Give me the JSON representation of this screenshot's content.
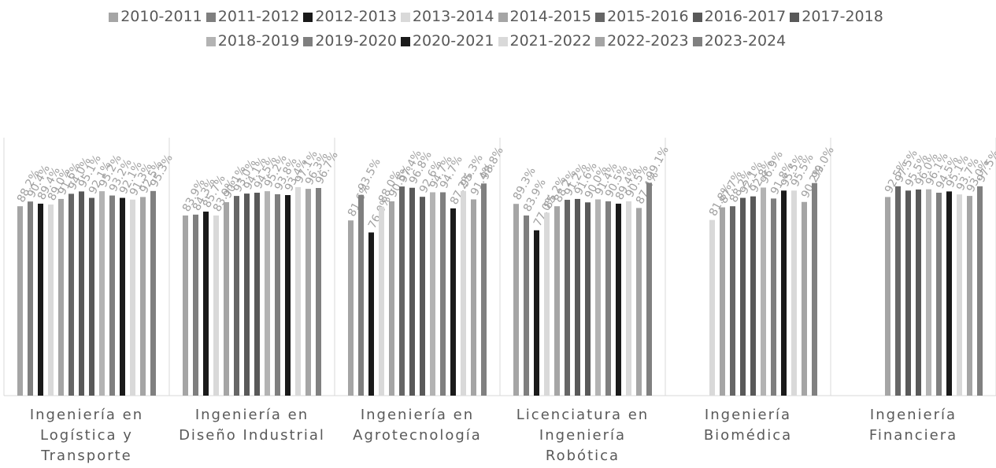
{
  "chart_data": {
    "type": "bar",
    "categories": [
      "Ingeniería en Logística y Transporte",
      "Ingeniería en Diseño Industrial",
      "Ingeniería en Agrotecnología",
      "Licenciatura en Ingeniería Robótica",
      "Ingeniería Biomédica",
      "Ingeniería Financiera"
    ],
    "ylim": [
      0,
      100
    ],
    "legend": "top",
    "series": [
      {
        "name": "2010-2011",
        "color": "#a5a5a5",
        "values": [
          88.2,
          83.9,
          81.6,
          89.3,
          null,
          null
        ],
        "value_labels": [
          "88.2%",
          "83.9%",
          "81.6%",
          "89.3%",
          null,
          null
        ]
      },
      {
        "name": "2011-2012",
        "color": "#7f7f7f",
        "values": [
          90.4,
          84.3,
          93.5,
          83.9,
          null,
          null
        ],
        "value_labels": [
          "90.4%",
          "84.3%",
          "93.5%",
          "83.9%",
          null,
          null
        ]
      },
      {
        "name": "2012-2013",
        "color": "#1a1a1a",
        "values": [
          89.4,
          85.7,
          76.0,
          77.0,
          null,
          null
        ],
        "value_labels": [
          "89.4%",
          "85.7%",
          "76.0%",
          "77.0%",
          null,
          null
        ]
      },
      {
        "name": "2013-2014",
        "color": "#d9d9d9",
        "values": [
          89.0,
          83.9,
          88.0,
          85.2,
          81.8,
          null
        ],
        "value_labels": [
          "89.0%",
          "83.9%",
          "88.0%",
          "85.2%",
          "81.8%",
          null
        ]
      },
      {
        "name": "2014-2015",
        "color": "#a5a5a5",
        "values": [
          91.6,
          90.1,
          90.5,
          88.2,
          87.7,
          92.5
        ],
        "value_labels": [
          "91.6%",
          "90.1%",
          "90.5%",
          "88.2%",
          "87.7%",
          "92.5%"
        ]
      },
      {
        "name": "2015-2016",
        "color": "#666666",
        "values": [
          94.0,
          93.0,
          97.4,
          91.2,
          88.2,
          97.5
        ],
        "value_labels": [
          "94.0%",
          "93.0%",
          "97.4%",
          "91.2%",
          "88.2%",
          "97.5%"
        ]
      },
      {
        "name": "2016-2017",
        "color": "#595959",
        "values": [
          95.1,
          94.1,
          96.8,
          91.6,
          92.1,
          95.5
        ],
        "value_labels": [
          "95.1%",
          "94.1%",
          "96.8%",
          "91.6%",
          "92.1%",
          "95.5%"
        ]
      },
      {
        "name": "2017-2018",
        "color": "#595959",
        "values": [
          92.1,
          94.5,
          92.6,
          90.0,
          92.8,
          96.0
        ],
        "value_labels": [
          "92.1%",
          "94.5%",
          "92.6%",
          "90.0%",
          "92.8%",
          "96.0%"
        ]
      },
      {
        "name": "2018-2019",
        "color": "#b3b3b3",
        "values": [
          95.2,
          95.2,
          94.7,
          91.4,
          96.9,
          96.1
        ],
        "value_labels": [
          "95.2%",
          "95.2%",
          "94.7%",
          "91.4%",
          "96.9%",
          "96.1%"
        ]
      },
      {
        "name": "2019-2020",
        "color": "#7f7f7f",
        "values": [
          93.2,
          93.8,
          94.7,
          90.5,
          91.8,
          94.5
        ],
        "value_labels": [
          "93.2%",
          "93.8%",
          "94.7%",
          "90.5%",
          "91.8%",
          "94.5%"
        ]
      },
      {
        "name": "2020-2021",
        "color": "#1a1a1a",
        "values": [
          92.1,
          93.4,
          87.2,
          89.4,
          95.5,
          95.1
        ],
        "value_labels": [
          "92.1%",
          "93.4%",
          "87.2%",
          "89.4%",
          "95.5%",
          "95.1%"
        ]
      },
      {
        "name": "2021-2022",
        "color": "#d9d9d9",
        "values": [
          91.3,
          97.1,
          95.3,
          90.5,
          95.5,
          93.7
        ],
        "value_labels": [
          "91.3%",
          "97.1%",
          "95.3%",
          "90.5%",
          "95.5%",
          "93.7%"
        ]
      },
      {
        "name": "2022-2023",
        "color": "#a5a5a5",
        "values": [
          92.5,
          96.3,
          91.4,
          87.4,
          90.2,
          93.0
        ],
        "value_labels": [
          "92.5%",
          "96.3%",
          "91.4%",
          "87.4%",
          "90.2%",
          "93.0%"
        ]
      },
      {
        "name": "2023-2024",
        "color": "#808080",
        "values": [
          95.3,
          96.7,
          98.8,
          99.1,
          99.0,
          97.5
        ],
        "value_labels": [
          "95.3%",
          "96.7%",
          "98.8%",
          "99.1%",
          "99.0%",
          "97.5%"
        ]
      }
    ]
  }
}
